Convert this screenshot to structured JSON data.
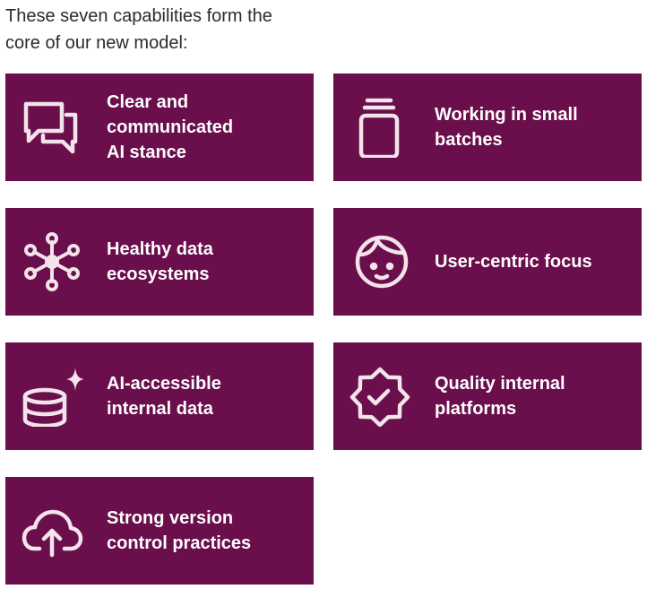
{
  "intro": {
    "line1": "These seven capabilities form the",
    "line2": "core of our new model:"
  },
  "colors": {
    "card_background": "#6a0f4c",
    "text_on_card": "#ffffff",
    "intro_text": "#2b2b2b"
  },
  "capabilities": [
    {
      "icon": "chat-bubbles-icon",
      "lines": [
        "Clear and",
        "communicated",
        "AI stance"
      ]
    },
    {
      "icon": "stacked-batches-icon",
      "lines": [
        "Working in small",
        "batches"
      ]
    },
    {
      "icon": "network-nodes-icon",
      "lines": [
        "Healthy data",
        "ecosystems"
      ]
    },
    {
      "icon": "face-icon",
      "lines": [
        "User-centric focus"
      ]
    },
    {
      "icon": "database-sparkle-icon",
      "lines": [
        "AI-accessible",
        "internal data"
      ]
    },
    {
      "icon": "verified-badge-icon",
      "lines": [
        "Quality internal",
        "platforms"
      ]
    },
    {
      "icon": "cloud-upload-icon",
      "lines": [
        "Strong version",
        "control practices"
      ]
    }
  ]
}
